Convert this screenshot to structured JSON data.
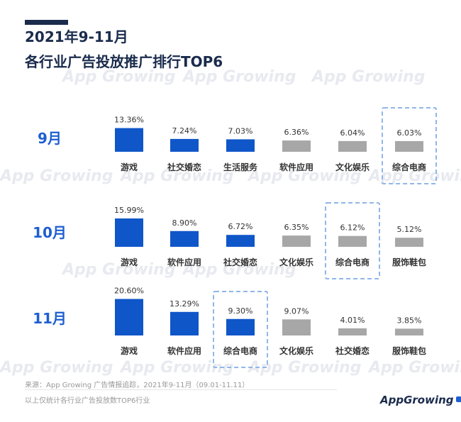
{
  "header": {
    "title_line1": "2021年9-11月",
    "title_line2": "各行业广告投放推广排行TOP6"
  },
  "watermark_text": "App Growing",
  "colors": {
    "highlight": "#0f56c8",
    "normal": "#a7a7a7",
    "dashed_box": "#8fb6ea",
    "row_label": "#1e5fd1",
    "title": "#1a2b4c"
  },
  "chart_data": {
    "type": "bar",
    "title": "各行业广告投放推广排行TOP6",
    "highlighted_category": "综合电商",
    "rows": [
      {
        "label": "9月",
        "items": [
          {
            "name": "游戏",
            "value": 13.36,
            "label": "13.36%",
            "highlight": true
          },
          {
            "name": "社交婚恋",
            "value": 7.24,
            "label": "7.24%",
            "highlight": true
          },
          {
            "name": "生活服务",
            "value": 7.03,
            "label": "7.03%",
            "highlight": true
          },
          {
            "name": "软件应用",
            "value": 6.36,
            "label": "6.36%",
            "highlight": false
          },
          {
            "name": "文化娱乐",
            "value": 6.04,
            "label": "6.04%",
            "highlight": false
          },
          {
            "name": "综合电商",
            "value": 6.03,
            "label": "6.03%",
            "highlight": false
          }
        ]
      },
      {
        "label": "10月",
        "items": [
          {
            "name": "游戏",
            "value": 15.99,
            "label": "15.99%",
            "highlight": true
          },
          {
            "name": "软件应用",
            "value": 8.9,
            "label": "8.90%",
            "highlight": true
          },
          {
            "name": "社交婚恋",
            "value": 6.72,
            "label": "6.72%",
            "highlight": true
          },
          {
            "name": "文化娱乐",
            "value": 6.35,
            "label": "6.35%",
            "highlight": false
          },
          {
            "name": "综合电商",
            "value": 6.12,
            "label": "6.12%",
            "highlight": false
          },
          {
            "name": "服饰鞋包",
            "value": 5.12,
            "label": "5.12%",
            "highlight": false
          }
        ]
      },
      {
        "label": "11月",
        "items": [
          {
            "name": "游戏",
            "value": 20.6,
            "label": "20.60%",
            "highlight": true
          },
          {
            "name": "软件应用",
            "value": 13.29,
            "label": "13.29%",
            "highlight": true
          },
          {
            "name": "综合电商",
            "value": 9.3,
            "label": "9.30%",
            "highlight": true
          },
          {
            "name": "文化娱乐",
            "value": 9.07,
            "label": "9.07%",
            "highlight": false
          },
          {
            "name": "社交婚恋",
            "value": 4.01,
            "label": "4.01%",
            "highlight": false
          },
          {
            "name": "服饰鞋包",
            "value": 3.85,
            "label": "3.85%",
            "highlight": false
          }
        ]
      }
    ]
  },
  "footer": {
    "source": "来源：App Growing 广告情报追踪，2021年9-11月（09.01-11.11）",
    "note": "以上仅统计各行业广告投放数TOP6行业"
  },
  "logo": {
    "text": "AppGrowing"
  }
}
